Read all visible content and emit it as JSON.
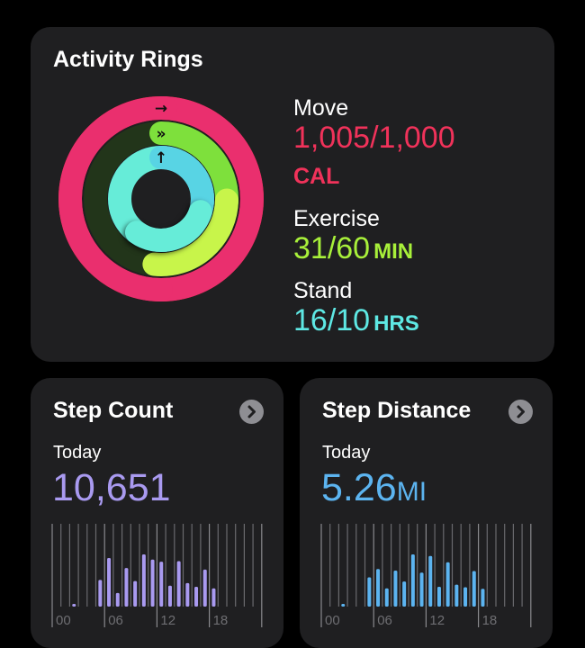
{
  "activity": {
    "title": "Activity Rings",
    "move": {
      "label": "Move",
      "value": "1,005/1,000",
      "unit": "CAL",
      "current": 1005,
      "goal": 1000,
      "color": "#f0325a"
    },
    "exercise": {
      "label": "Exercise",
      "value": "31/60",
      "unit": "MIN",
      "current": 31,
      "goal": 60,
      "color": "#a8f03a"
    },
    "stand": {
      "label": "Stand",
      "value": "16/10",
      "unit": "HRS",
      "current": 16,
      "goal": 10,
      "color": "#5ee8e4"
    },
    "icons": [
      "arrow-right-icon",
      "double-arrow-right-icon",
      "arrow-up-icon"
    ]
  },
  "steps": {
    "title": "Step Count",
    "today_label": "Today",
    "value": "10,651",
    "unit": "",
    "color": "#a99af0"
  },
  "distance": {
    "title": "Step Distance",
    "today_label": "Today",
    "value": "5.26",
    "unit": "MI",
    "color": "#5cb4f0"
  },
  "chart_data": [
    {
      "type": "bar",
      "name": "step-count-hourly",
      "x_tick_labels": [
        "00",
        "06",
        "12",
        "18"
      ],
      "categories": [
        0,
        1,
        2,
        3,
        4,
        5,
        6,
        7,
        8,
        9,
        10,
        11,
        12,
        13,
        14,
        15,
        16,
        17,
        18,
        19,
        20,
        21,
        22,
        23
      ],
      "values_relative": [
        0,
        0,
        0.05,
        0,
        0,
        0.51,
        0.93,
        0.26,
        0.74,
        0.49,
        1.0,
        0.9,
        0.86,
        0.4,
        0.87,
        0.45,
        0.38,
        0.71,
        0.35,
        0,
        0,
        0,
        0,
        0
      ],
      "grid": true
    },
    {
      "type": "bar",
      "name": "step-distance-hourly",
      "x_tick_labels": [
        "00",
        "06",
        "12",
        "18"
      ],
      "categories": [
        0,
        1,
        2,
        3,
        4,
        5,
        6,
        7,
        8,
        9,
        10,
        11,
        12,
        13,
        14,
        15,
        16,
        17,
        18,
        19,
        20,
        21,
        22,
        23
      ],
      "values_relative": [
        0,
        0,
        0.05,
        0,
        0,
        0.56,
        0.72,
        0.35,
        0.69,
        0.48,
        1.0,
        0.65,
        0.97,
        0.38,
        0.85,
        0.42,
        0.37,
        0.68,
        0.34,
        0,
        0,
        0,
        0,
        0
      ],
      "grid": true
    }
  ]
}
